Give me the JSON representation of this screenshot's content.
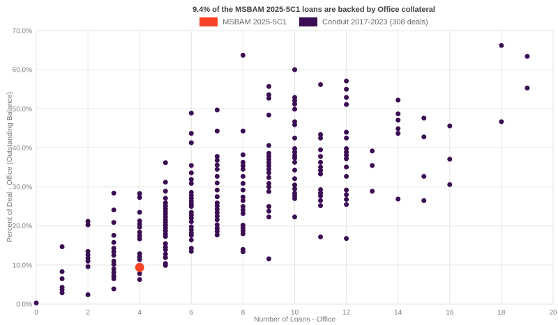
{
  "title": "9.4% of the MSBAM 2025-5C1 loans are backed by Office collateral",
  "legend": {
    "items": [
      {
        "label": "MSBAM 2025-5C1",
        "color": "#fb4226"
      },
      {
        "label": "Conduit 2017-2023 (308 deals)",
        "color": "#3b0d52"
      }
    ]
  },
  "chart_data": {
    "type": "scatter",
    "title": "9.4% of the MSBAM 2025-5C1 loans are backed by Office collateral",
    "xlabel": "Number of Loans - Office",
    "ylabel": "Percent of Deal - Office (Outstanding Balance)",
    "xlim": [
      0,
      20
    ],
    "ylim": [
      0,
      70
    ],
    "x_ticks": [
      0,
      2,
      4,
      6,
      8,
      10,
      12,
      14,
      16,
      18,
      20
    ],
    "y_ticks": [
      0,
      10,
      20,
      30,
      40,
      50,
      60,
      70
    ],
    "y_tick_labels": [
      "0.0%",
      "10.0%",
      "20.0%",
      "30.0%",
      "40.0%",
      "50.0%",
      "60.0%",
      "70.0%"
    ],
    "grid": true,
    "grid_color": "#e5e5e5",
    "tick_label_color": "#7f7f7f",
    "legend_position": "top-center",
    "series": [
      {
        "name": "Conduit 2017-2023 (308 deals)",
        "color": "#3b0d52",
        "marker_radius": 3.5,
        "points": [
          [
            0,
            0.3
          ],
          [
            1,
            14.7
          ],
          [
            1,
            8.3
          ],
          [
            1,
            6.5
          ],
          [
            1,
            4.3
          ],
          [
            1,
            3.7
          ],
          [
            1,
            2.9
          ],
          [
            2,
            21.2
          ],
          [
            2,
            20.3
          ],
          [
            2,
            13.5
          ],
          [
            2,
            12.6
          ],
          [
            2,
            11.8
          ],
          [
            2,
            11.0
          ],
          [
            2,
            9.6
          ],
          [
            2,
            2.4
          ],
          [
            3,
            28.4
          ],
          [
            3,
            24.1
          ],
          [
            3,
            20.9
          ],
          [
            3,
            17.6
          ],
          [
            3,
            15.8
          ],
          [
            3,
            14.3
          ],
          [
            3,
            13.4
          ],
          [
            3,
            12.5
          ],
          [
            3,
            11.0
          ],
          [
            3,
            10.2
          ],
          [
            3,
            9.0
          ],
          [
            3,
            8.1
          ],
          [
            3,
            7.2
          ],
          [
            3,
            6.5
          ],
          [
            3,
            3.9
          ],
          [
            4,
            28.3
          ],
          [
            4,
            27.3
          ],
          [
            4,
            23.5
          ],
          [
            4,
            21.3
          ],
          [
            4,
            20.5
          ],
          [
            4,
            19.7
          ],
          [
            4,
            18.4
          ],
          [
            4,
            17.5
          ],
          [
            4,
            16.7
          ],
          [
            4,
            12.9
          ],
          [
            4,
            12.1
          ],
          [
            4,
            11.4
          ],
          [
            4,
            7.8
          ],
          [
            4,
            6.3
          ],
          [
            5,
            36.2
          ],
          [
            5,
            31.2
          ],
          [
            5,
            28.9
          ],
          [
            5,
            27.1
          ],
          [
            5,
            25.9
          ],
          [
            5,
            25.1
          ],
          [
            5,
            24.4
          ],
          [
            5,
            23.7
          ],
          [
            5,
            23.0
          ],
          [
            5,
            22.3
          ],
          [
            5,
            21.6
          ],
          [
            5,
            20.9
          ],
          [
            5,
            20.2
          ],
          [
            5,
            19.5
          ],
          [
            5,
            18.8
          ],
          [
            5,
            18.0
          ],
          [
            5,
            17.3
          ],
          [
            5,
            15.5
          ],
          [
            5,
            14.6
          ],
          [
            5,
            13.9
          ],
          [
            5,
            12.8
          ],
          [
            5,
            11.9
          ],
          [
            5,
            10.4
          ],
          [
            5,
            9.9
          ],
          [
            6,
            48.9
          ],
          [
            6,
            43.7
          ],
          [
            6,
            41.3
          ],
          [
            6,
            35.5
          ],
          [
            6,
            33.6
          ],
          [
            6,
            31.9
          ],
          [
            6,
            30.9
          ],
          [
            6,
            28.6
          ],
          [
            6,
            27.8
          ],
          [
            6,
            27.1
          ],
          [
            6,
            26.3
          ],
          [
            6,
            25.6
          ],
          [
            6,
            25.0
          ],
          [
            6,
            23.5
          ],
          [
            6,
            22.7
          ],
          [
            6,
            22.0
          ],
          [
            6,
            21.1
          ],
          [
            6,
            19.8
          ],
          [
            6,
            19.0
          ],
          [
            6,
            18.2
          ],
          [
            6,
            17.6
          ],
          [
            6,
            16.4
          ],
          [
            6,
            14.3
          ],
          [
            6,
            13.5
          ],
          [
            7,
            49.7
          ],
          [
            7,
            44.3
          ],
          [
            7,
            37.8
          ],
          [
            7,
            36.8
          ],
          [
            7,
            35.6
          ],
          [
            7,
            34.5
          ],
          [
            7,
            32.7
          ],
          [
            7,
            31.0
          ],
          [
            7,
            29.2
          ],
          [
            7,
            27.5
          ],
          [
            7,
            25.9
          ],
          [
            7,
            25.1
          ],
          [
            7,
            24.3
          ],
          [
            7,
            23.4
          ],
          [
            7,
            22.5
          ],
          [
            7,
            21.6
          ],
          [
            7,
            20.3
          ],
          [
            7,
            19.4
          ],
          [
            7,
            18.6
          ],
          [
            7,
            17.7
          ],
          [
            8,
            63.7
          ],
          [
            8,
            44.3
          ],
          [
            8,
            38.2
          ],
          [
            8,
            36.3
          ],
          [
            8,
            35.4
          ],
          [
            8,
            34.5
          ],
          [
            8,
            32.7
          ],
          [
            8,
            30.9
          ],
          [
            8,
            29.2
          ],
          [
            8,
            27.4
          ],
          [
            8,
            26.5
          ],
          [
            8,
            25.0
          ],
          [
            8,
            24.1
          ],
          [
            8,
            23.2
          ],
          [
            8,
            20.2
          ],
          [
            8,
            19.5
          ],
          [
            8,
            18.8
          ],
          [
            8,
            18.0
          ],
          [
            8,
            14.0
          ],
          [
            8,
            13.4
          ],
          [
            9,
            55.7
          ],
          [
            9,
            53.6
          ],
          [
            9,
            52.7
          ],
          [
            9,
            48.4
          ],
          [
            9,
            40.6
          ],
          [
            9,
            38.6
          ],
          [
            9,
            37.8
          ],
          [
            9,
            37.0
          ],
          [
            9,
            36.2
          ],
          [
            9,
            35.4
          ],
          [
            9,
            34.5
          ],
          [
            9,
            33.6
          ],
          [
            9,
            32.4
          ],
          [
            9,
            30.9
          ],
          [
            9,
            30.0
          ],
          [
            9,
            28.8
          ],
          [
            9,
            25.0
          ],
          [
            9,
            23.8
          ],
          [
            9,
            22.3
          ],
          [
            9,
            11.6
          ],
          [
            10,
            60.0
          ],
          [
            10,
            52.9
          ],
          [
            10,
            52.1
          ],
          [
            10,
            51.2
          ],
          [
            10,
            49.9
          ],
          [
            10,
            46.7
          ],
          [
            10,
            45.9
          ],
          [
            10,
            42.5
          ],
          [
            10,
            39.8
          ],
          [
            10,
            38.9
          ],
          [
            10,
            38.0
          ],
          [
            10,
            37.4
          ],
          [
            10,
            36.3
          ],
          [
            10,
            34.3
          ],
          [
            10,
            32.1
          ],
          [
            10,
            30.5
          ],
          [
            10,
            29.5
          ],
          [
            10,
            28.4
          ],
          [
            10,
            27.7
          ],
          [
            10,
            27.0
          ],
          [
            10,
            22.3
          ],
          [
            11,
            56.2
          ],
          [
            11,
            43.4
          ],
          [
            11,
            42.5
          ],
          [
            11,
            39.5
          ],
          [
            11,
            37.8
          ],
          [
            11,
            36.3
          ],
          [
            11,
            35.1
          ],
          [
            11,
            34.2
          ],
          [
            11,
            33.3
          ],
          [
            11,
            29.3
          ],
          [
            11,
            28.4
          ],
          [
            11,
            27.7
          ],
          [
            11,
            26.5
          ],
          [
            11,
            25.2
          ],
          [
            11,
            17.2
          ],
          [
            12,
            57.1
          ],
          [
            12,
            55.0
          ],
          [
            12,
            52.9
          ],
          [
            12,
            51.1
          ],
          [
            12,
            44.0
          ],
          [
            12,
            42.5
          ],
          [
            12,
            39.8
          ],
          [
            12,
            38.9
          ],
          [
            12,
            38.1
          ],
          [
            12,
            37.2
          ],
          [
            12,
            35.1
          ],
          [
            12,
            32.7
          ],
          [
            12,
            29.2
          ],
          [
            12,
            28.0
          ],
          [
            12,
            26.8
          ],
          [
            12,
            25.5
          ],
          [
            12,
            16.8
          ],
          [
            13,
            39.2
          ],
          [
            13,
            35.5
          ],
          [
            13,
            28.9
          ],
          [
            14,
            52.2
          ],
          [
            14,
            48.7
          ],
          [
            14,
            47.1
          ],
          [
            14,
            44.9
          ],
          [
            14,
            43.7
          ],
          [
            14,
            26.9
          ],
          [
            15,
            47.6
          ],
          [
            15,
            42.8
          ],
          [
            15,
            32.7
          ],
          [
            15,
            26.5
          ],
          [
            16,
            45.6
          ],
          [
            16,
            37.1
          ],
          [
            16,
            30.6
          ],
          [
            18,
            66.2
          ],
          [
            18,
            46.7
          ],
          [
            19,
            63.4
          ],
          [
            19,
            55.3
          ]
        ]
      },
      {
        "name": "MSBAM 2025-5C1",
        "color": "#fb4226",
        "marker_radius": 6.5,
        "points": [
          [
            4,
            9.4
          ]
        ]
      }
    ]
  }
}
